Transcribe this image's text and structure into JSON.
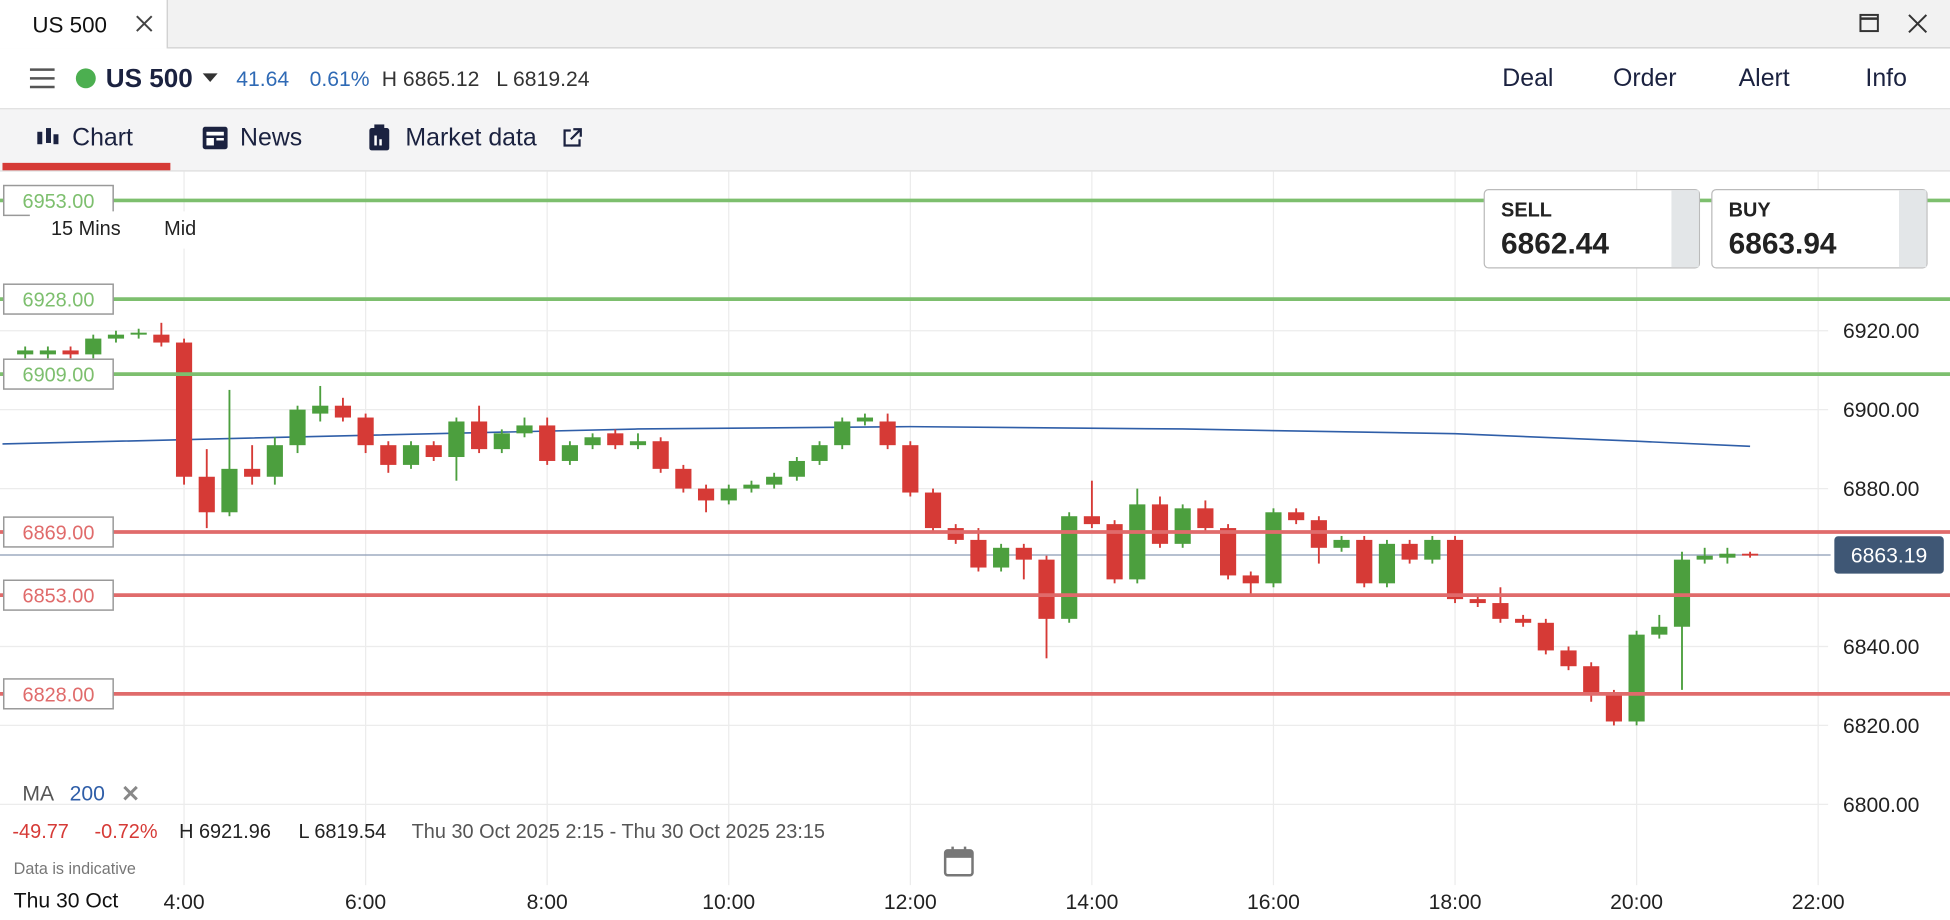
{
  "window": {
    "tab_title": "US 500"
  },
  "header": {
    "symbol": "US 500",
    "change": "41.64",
    "change_pct": "0.61%",
    "high": "H 6865.12",
    "low": "L 6819.24",
    "actions": [
      "Deal",
      "Order",
      "Alert",
      "Info"
    ]
  },
  "tabs": [
    "Chart",
    "News",
    "Market data"
  ],
  "toolbar": {
    "interval": "15 Mins",
    "price_type": "Mid"
  },
  "quote": {
    "sell_label": "SELL",
    "sell": "6862.44",
    "buy_label": "BUY",
    "buy": "6863.94"
  },
  "indicator": {
    "name": "MA",
    "period": "200"
  },
  "stats": {
    "change": "-49.77",
    "change_pct": "-0.72%",
    "high": "H 6921.96",
    "low": "L 6819.54",
    "range": "Thu 30 Oct 2025 2:15 - Thu 30 Oct 2025 23:15",
    "note": "Data is indicative",
    "date": "Thu 30 Oct"
  },
  "chart_data": {
    "type": "candlestick",
    "x": [
      2.25,
      2.5,
      2.75,
      3,
      3.25,
      3.5,
      3.75,
      4,
      4.25,
      4.5,
      4.75,
      5,
      5.25,
      5.5,
      5.75,
      6,
      6.25,
      6.5,
      6.75,
      7,
      7.25,
      7.5,
      7.75,
      8,
      8.25,
      8.5,
      8.75,
      9,
      9.25,
      9.5,
      9.75,
      10,
      10.25,
      10.5,
      10.75,
      11,
      11.25,
      11.5,
      11.75,
      12,
      12.25,
      12.5,
      12.75,
      13,
      13.25,
      13.5,
      13.75,
      14,
      14.25,
      14.5,
      14.75,
      15,
      15.25,
      15.5,
      15.75,
      16,
      16.25,
      16.5,
      16.75,
      17,
      17.25,
      17.5,
      17.75,
      18,
      18.25,
      18.5,
      18.75,
      19,
      19.25,
      19.5,
      19.75,
      20,
      20.25,
      20.5,
      20.75,
      21,
      21.25
    ],
    "open": [
      6914,
      6914,
      6915,
      6914,
      6918,
      6919,
      6919,
      6917,
      6883,
      6874,
      6885,
      6883,
      6891,
      6899,
      6901,
      6898,
      6891,
      6886,
      6891,
      6888,
      6897,
      6890,
      6894,
      6896,
      6887,
      6891,
      6894,
      6891,
      6892,
      6885,
      6880,
      6877,
      6880,
      6881,
      6883,
      6887,
      6891,
      6897,
      6897,
      6891,
      6879,
      6870,
      6867,
      6860,
      6865,
      6862,
      6847,
      6873,
      6871,
      6857,
      6876,
      6866,
      6875,
      6870,
      6858,
      6856,
      6874,
      6872,
      6865,
      6867,
      6856,
      6866,
      6862,
      6867,
      6852,
      6851,
      6847,
      6846,
      6839,
      6835,
      6828,
      6821,
      6843,
      6845,
      6862,
      6862.5,
      6863.5
    ],
    "high": [
      6916,
      6916,
      6916,
      6919,
      6920,
      6920.5,
      6922,
      6918,
      6890,
      6905,
      6891,
      6893,
      6901,
      6906,
      6903,
      6899,
      6892,
      6892,
      6892,
      6898,
      6901,
      6895,
      6898,
      6898,
      6892,
      6894,
      6895,
      6894,
      6893,
      6886,
      6881,
      6881,
      6882,
      6884,
      6888,
      6892,
      6898,
      6899,
      6899,
      6892,
      6880,
      6871,
      6870,
      6866,
      6866,
      6863,
      6874,
      6882,
      6872,
      6880,
      6878,
      6876,
      6877,
      6871,
      6859,
      6875,
      6875,
      6873,
      6868,
      6868,
      6867,
      6867,
      6868,
      6868,
      6853,
      6855,
      6848,
      6847,
      6840,
      6836,
      6829,
      6844,
      6848,
      6864,
      6865,
      6865,
      6864
    ],
    "low": [
      6913,
      6913,
      6913,
      6913,
      6917,
      6918,
      6916,
      6881,
      6870,
      6873,
      6881,
      6881,
      6889,
      6897,
      6897,
      6889,
      6884,
      6885,
      6887,
      6882,
      6889,
      6889,
      6893,
      6886,
      6886,
      6890,
      6890,
      6890,
      6884,
      6879,
      6874,
      6876,
      6879,
      6880,
      6882,
      6886,
      6890,
      6896,
      6890,
      6878,
      6869,
      6866,
      6859,
      6859,
      6857,
      6837,
      6846,
      6870,
      6856,
      6856,
      6865,
      6865,
      6869,
      6857,
      6853,
      6855,
      6871,
      6861,
      6864,
      6855,
      6855,
      6861,
      6861,
      6851,
      6850,
      6846,
      6845,
      6838,
      6834,
      6826,
      6820,
      6820,
      6842,
      6829,
      6861,
      6861,
      6862.5
    ],
    "close": [
      6915,
      6915,
      6914,
      6918,
      6919,
      6919.5,
      6917,
      6883,
      6874,
      6885,
      6883,
      6891,
      6900,
      6901,
      6898,
      6891,
      6886,
      6891,
      6888,
      6897,
      6890,
      6894,
      6896,
      6887,
      6891,
      6893,
      6891,
      6892,
      6885,
      6880,
      6877,
      6880,
      6881,
      6883,
      6887,
      6891,
      6897,
      6898,
      6891,
      6879,
      6870,
      6867,
      6860,
      6865,
      6862,
      6847,
      6873,
      6871,
      6857,
      6876,
      6866,
      6875,
      6870,
      6858,
      6856,
      6874,
      6872,
      6865,
      6867,
      6856,
      6866,
      6862,
      6867,
      6852,
      6851,
      6847,
      6846,
      6839,
      6835,
      6828,
      6821,
      6843,
      6845,
      6862,
      6863,
      6863.5,
      6863.19
    ],
    "up_color": "#4c9f3e",
    "down_color": "#d63a36",
    "ma": {
      "x": [
        2,
        6,
        9,
        12,
        15,
        18,
        20,
        21.25
      ],
      "values": [
        6891.3,
        6893.5,
        6895.1,
        6895.7,
        6895.1,
        6893.9,
        6892,
        6890.7
      ],
      "color": "#2f5ea8"
    },
    "levels": [
      {
        "value": 6953,
        "label": "6953.00",
        "color": "#7dbf6e"
      },
      {
        "value": 6928,
        "label": "6928.00",
        "color": "#7dbf6e"
      },
      {
        "value": 6909,
        "label": "6909.00",
        "color": "#7dbf6e"
      },
      {
        "value": 6869,
        "label": "6869.00",
        "color": "#e06b6b"
      },
      {
        "value": 6853,
        "label": "6853.00",
        "color": "#e06b6b"
      },
      {
        "value": 6828,
        "label": "6828.00",
        "color": "#e06b6b"
      }
    ],
    "current": {
      "value": 6863.19,
      "label": "6863.19"
    },
    "xlim": [
      2,
      23
    ],
    "ylim": [
      6790,
      6960
    ],
    "xticks": [
      {
        "value": 4,
        "label": "4:00"
      },
      {
        "value": 6,
        "label": "6:00"
      },
      {
        "value": 8,
        "label": "8:00"
      },
      {
        "value": 10,
        "label": "10:00"
      },
      {
        "value": 12,
        "label": "12:00"
      },
      {
        "value": 14,
        "label": "14:00"
      },
      {
        "value": 16,
        "label": "16:00"
      },
      {
        "value": 18,
        "label": "18:00"
      },
      {
        "value": 20,
        "label": "20:00"
      },
      {
        "value": 22,
        "label": "22:00"
      }
    ],
    "yticks": [
      {
        "value": 6800,
        "label": "6800.00"
      },
      {
        "value": 6820,
        "label": "6820.00"
      },
      {
        "value": 6840,
        "label": "6840.00"
      },
      {
        "value": 6880,
        "label": "6880.00"
      },
      {
        "value": 6900,
        "label": "6900.00"
      },
      {
        "value": 6920,
        "label": "6920.00"
      }
    ],
    "grid": true
  }
}
